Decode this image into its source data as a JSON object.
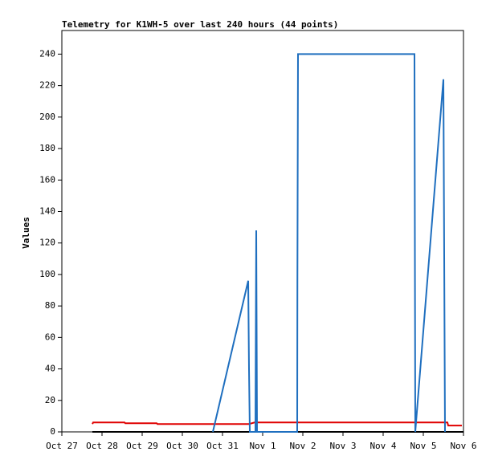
{
  "chart_data": {
    "type": "line",
    "title": "Telemetry for K1WH-5 over last 240 hours (44 points)",
    "y_label": "Values",
    "xlim": [
      0,
      10
    ],
    "xticks": [
      {
        "value": 0,
        "label": "Oct 27"
      },
      {
        "value": 1,
        "label": "Oct 28"
      },
      {
        "value": 2,
        "label": "Oct 29"
      },
      {
        "value": 3,
        "label": "Oct 30"
      },
      {
        "value": 4,
        "label": "Oct 31"
      },
      {
        "value": 5,
        "label": "Nov 1"
      },
      {
        "value": 6,
        "label": "Nov 2"
      },
      {
        "value": 7,
        "label": "Nov 3"
      },
      {
        "value": 8,
        "label": "Nov 4"
      },
      {
        "value": 9,
        "label": "Nov 5"
      },
      {
        "value": 10,
        "label": "Nov 6"
      }
    ],
    "ylim": [
      0,
      255
    ],
    "yticks": [
      0,
      20,
      40,
      60,
      80,
      100,
      120,
      140,
      160,
      180,
      200,
      220,
      240
    ],
    "series": [
      {
        "color": "#000000",
        "x": [
          0.76,
          10
        ],
        "values": [
          0,
          0
        ]
      },
      {
        "color": "#e00000",
        "x": [
          0.76,
          0.78,
          1.56,
          1.58,
          2.36,
          2.38,
          4.66,
          4.8,
          8.8,
          9.4,
          9.6,
          9.62,
          9.96
        ],
        "values": [
          5,
          6,
          6,
          5.5,
          5.5,
          5,
          5,
          6,
          6,
          6,
          6,
          4,
          4
        ]
      },
      {
        "color": "#1f6fbf",
        "x": [
          3.76,
          4.64,
          4.66,
          4.68,
          4.82,
          4.84,
          4.86,
          5.86,
          5.865,
          5.88,
          8.78,
          8.8,
          9.5,
          9.52,
          9.54
        ],
        "values": [
          0,
          96,
          40,
          0,
          0,
          128,
          0,
          0,
          97,
          240,
          240,
          0,
          224,
          112,
          0
        ]
      }
    ]
  }
}
